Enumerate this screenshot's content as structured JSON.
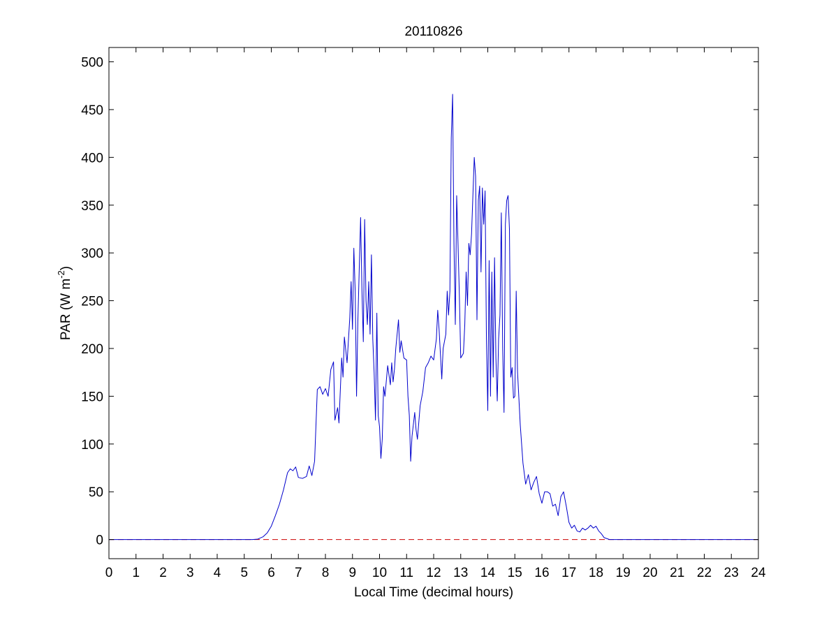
{
  "chart_data": {
    "type": "line",
    "title": "20110826",
    "xlabel": "Local Time (decimal hours)",
    "ylabel": {
      "prefix": "PAR (W m",
      "superscript": "-2",
      "suffix": ")"
    },
    "xlim": [
      0,
      24
    ],
    "ylim": [
      -20,
      515
    ],
    "xticks": [
      0,
      1,
      2,
      3,
      4,
      5,
      6,
      7,
      8,
      9,
      10,
      11,
      12,
      13,
      14,
      15,
      16,
      17,
      18,
      19,
      20,
      21,
      22,
      23,
      24
    ],
    "yticks": [
      0,
      50,
      100,
      150,
      200,
      250,
      300,
      350,
      400,
      450,
      500
    ],
    "grid": false,
    "series": [
      {
        "color": "#0000cc",
        "style": "solid",
        "points": [
          [
            0,
            0
          ],
          [
            5.3,
            0
          ],
          [
            5.5,
            0.5
          ],
          [
            5.7,
            3
          ],
          [
            5.85,
            7
          ],
          [
            6.0,
            14
          ],
          [
            6.15,
            25
          ],
          [
            6.3,
            37
          ],
          [
            6.45,
            52
          ],
          [
            6.6,
            70
          ],
          [
            6.7,
            74
          ],
          [
            6.8,
            72
          ],
          [
            6.9,
            76
          ],
          [
            7.0,
            65
          ],
          [
            7.15,
            64
          ],
          [
            7.3,
            66
          ],
          [
            7.4,
            77
          ],
          [
            7.5,
            67
          ],
          [
            7.6,
            82
          ],
          [
            7.7,
            157
          ],
          [
            7.8,
            160
          ],
          [
            7.9,
            152
          ],
          [
            8.0,
            158
          ],
          [
            8.1,
            150
          ],
          [
            8.2,
            178
          ],
          [
            8.3,
            186
          ],
          [
            8.35,
            125
          ],
          [
            8.45,
            138
          ],
          [
            8.5,
            122
          ],
          [
            8.6,
            190
          ],
          [
            8.65,
            170
          ],
          [
            8.7,
            212
          ],
          [
            8.8,
            185
          ],
          [
            8.9,
            232
          ],
          [
            8.95,
            270
          ],
          [
            9.0,
            220
          ],
          [
            9.05,
            305
          ],
          [
            9.1,
            260
          ],
          [
            9.15,
            150
          ],
          [
            9.2,
            230
          ],
          [
            9.3,
            337
          ],
          [
            9.35,
            260
          ],
          [
            9.4,
            207
          ],
          [
            9.45,
            335
          ],
          [
            9.5,
            250
          ],
          [
            9.55,
            225
          ],
          [
            9.6,
            270
          ],
          [
            9.65,
            215
          ],
          [
            9.7,
            298
          ],
          [
            9.75,
            210
          ],
          [
            9.8,
            175
          ],
          [
            9.85,
            125
          ],
          [
            9.9,
            237
          ],
          [
            9.95,
            130
          ],
          [
            10.0,
            118
          ],
          [
            10.05,
            85
          ],
          [
            10.1,
            105
          ],
          [
            10.15,
            160
          ],
          [
            10.2,
            150
          ],
          [
            10.3,
            182
          ],
          [
            10.4,
            162
          ],
          [
            10.45,
            185
          ],
          [
            10.5,
            165
          ],
          [
            10.55,
            178
          ],
          [
            10.6,
            200
          ],
          [
            10.7,
            230
          ],
          [
            10.75,
            196
          ],
          [
            10.8,
            208
          ],
          [
            10.9,
            190
          ],
          [
            11.0,
            188
          ],
          [
            11.05,
            150
          ],
          [
            11.1,
            130
          ],
          [
            11.15,
            82
          ],
          [
            11.2,
            108
          ],
          [
            11.3,
            133
          ],
          [
            11.35,
            115
          ],
          [
            11.4,
            105
          ],
          [
            11.5,
            140
          ],
          [
            11.6,
            155
          ],
          [
            11.7,
            180
          ],
          [
            11.8,
            185
          ],
          [
            11.9,
            192
          ],
          [
            12.0,
            188
          ],
          [
            12.1,
            210
          ],
          [
            12.15,
            240
          ],
          [
            12.2,
            220
          ],
          [
            12.3,
            168
          ],
          [
            12.35,
            200
          ],
          [
            12.45,
            215
          ],
          [
            12.5,
            260
          ],
          [
            12.55,
            235
          ],
          [
            12.6,
            260
          ],
          [
            12.65,
            420
          ],
          [
            12.7,
            466
          ],
          [
            12.75,
            310
          ],
          [
            12.8,
            225
          ],
          [
            12.85,
            360
          ],
          [
            12.9,
            310
          ],
          [
            12.95,
            255
          ],
          [
            13.0,
            190
          ],
          [
            13.1,
            195
          ],
          [
            13.15,
            225
          ],
          [
            13.2,
            280
          ],
          [
            13.25,
            245
          ],
          [
            13.3,
            310
          ],
          [
            13.35,
            298
          ],
          [
            13.4,
            320
          ],
          [
            13.45,
            360
          ],
          [
            13.5,
            400
          ],
          [
            13.55,
            380
          ],
          [
            13.6,
            230
          ],
          [
            13.65,
            355
          ],
          [
            13.7,
            370
          ],
          [
            13.75,
            280
          ],
          [
            13.8,
            368
          ],
          [
            13.85,
            330
          ],
          [
            13.9,
            365
          ],
          [
            13.95,
            210
          ],
          [
            14.0,
            135
          ],
          [
            14.05,
            292
          ],
          [
            14.1,
            150
          ],
          [
            14.15,
            280
          ],
          [
            14.2,
            170
          ],
          [
            14.25,
            295
          ],
          [
            14.3,
            190
          ],
          [
            14.35,
            145
          ],
          [
            14.4,
            210
          ],
          [
            14.45,
            235
          ],
          [
            14.5,
            342
          ],
          [
            14.55,
            200
          ],
          [
            14.6,
            133
          ],
          [
            14.65,
            330
          ],
          [
            14.7,
            355
          ],
          [
            14.75,
            360
          ],
          [
            14.8,
            325
          ],
          [
            14.85,
            170
          ],
          [
            14.9,
            180
          ],
          [
            14.95,
            148
          ],
          [
            15.0,
            150
          ],
          [
            15.05,
            260
          ],
          [
            15.1,
            175
          ],
          [
            15.2,
            120
          ],
          [
            15.3,
            80
          ],
          [
            15.4,
            58
          ],
          [
            15.5,
            68
          ],
          [
            15.6,
            52
          ],
          [
            15.7,
            60
          ],
          [
            15.8,
            66
          ],
          [
            15.9,
            48
          ],
          [
            16.0,
            38
          ],
          [
            16.1,
            50
          ],
          [
            16.2,
            50
          ],
          [
            16.3,
            48
          ],
          [
            16.4,
            35
          ],
          [
            16.5,
            37
          ],
          [
            16.6,
            25
          ],
          [
            16.7,
            45
          ],
          [
            16.8,
            50
          ],
          [
            16.9,
            35
          ],
          [
            17.0,
            18
          ],
          [
            17.1,
            12
          ],
          [
            17.2,
            15
          ],
          [
            17.3,
            9
          ],
          [
            17.4,
            8
          ],
          [
            17.5,
            12
          ],
          [
            17.6,
            10
          ],
          [
            17.7,
            12
          ],
          [
            17.8,
            15
          ],
          [
            17.9,
            12
          ],
          [
            18.0,
            14
          ],
          [
            18.1,
            9
          ],
          [
            18.2,
            6
          ],
          [
            18.3,
            2
          ],
          [
            18.5,
            0
          ],
          [
            24,
            0
          ]
        ]
      },
      {
        "color": "#cc0000",
        "style": "dashed",
        "points": [
          [
            0,
            0
          ],
          [
            24,
            0
          ]
        ]
      }
    ]
  }
}
